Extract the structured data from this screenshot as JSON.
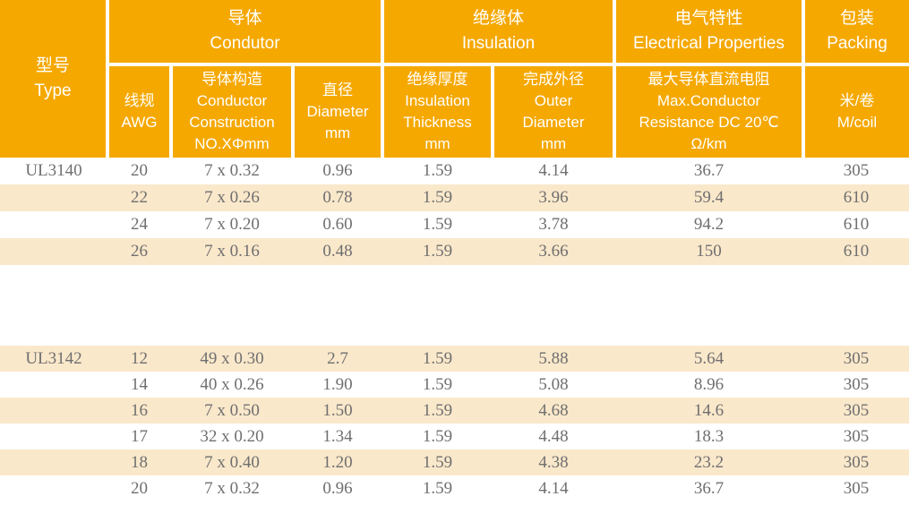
{
  "colors": {
    "header_bg": "#F5A800",
    "stripe_bg": "#FAE8CB",
    "header_text": "#FFFFFF",
    "body_text": "#6F6F6F",
    "divider": "#FFFFFF"
  },
  "table": {
    "header": {
      "type": "型号\nType",
      "groups": [
        {
          "label": "导体\nCondutor",
          "colspan": 3
        },
        {
          "label": "绝缘体\nInsulation",
          "colspan": 2
        },
        {
          "label": "电气特性\nElectrical Properties",
          "colspan": 1
        },
        {
          "label": "包装\nPacking",
          "colspan": 1
        }
      ],
      "columns": [
        "线规\nAWG",
        "导体构造\nConductor\nConstruction\nNO.XΦmm",
        "直径\nDiameter\nmm",
        "绝缘厚度\nInsulation\nThickness\nmm",
        "完成外径\nOuter\nDiameter\nmm",
        "最大导体直流电阻\nMax.Conductor\nResistance DC 20℃\nΩ/km",
        "米/卷\nM/coil"
      ]
    },
    "sections": [
      {
        "type": "UL3140",
        "rows": [
          {
            "awg": "20",
            "construction": "7 x 0.32",
            "diameter": "0.96",
            "insulation_thickness": "1.59",
            "outer_diameter": "4.14",
            "resistance": "36.7",
            "m_per_coil": "305",
            "shaded": false
          },
          {
            "awg": "22",
            "construction": "7 x 0.26",
            "diameter": "0.78",
            "insulation_thickness": "1.59",
            "outer_diameter": "3.96",
            "resistance": "59.4",
            "m_per_coil": "610",
            "shaded": true
          },
          {
            "awg": "24",
            "construction": "7 x 0.20",
            "diameter": "0.60",
            "insulation_thickness": "1.59",
            "outer_diameter": "3.78",
            "resistance": "94.2",
            "m_per_coil": "610",
            "shaded": false
          },
          {
            "awg": "26",
            "construction": "7 x 0.16",
            "diameter": "0.48",
            "insulation_thickness": "1.59",
            "outer_diameter": "3.66",
            "resistance": "150",
            "m_per_coil": "610",
            "shaded": true
          }
        ]
      },
      {
        "type": "UL3142",
        "rows": [
          {
            "awg": "12",
            "construction": "49 x 0.30",
            "diameter": "2.7",
            "insulation_thickness": "1.59",
            "outer_diameter": "5.88",
            "resistance": "5.64",
            "m_per_coil": "305",
            "shaded": true
          },
          {
            "awg": "14",
            "construction": "40 x 0.26",
            "diameter": "1.90",
            "insulation_thickness": "1.59",
            "outer_diameter": "5.08",
            "resistance": "8.96",
            "m_per_coil": "305",
            "shaded": false
          },
          {
            "awg": "16",
            "construction": "7 x 0.50",
            "diameter": "1.50",
            "insulation_thickness": "1.59",
            "outer_diameter": "4.68",
            "resistance": "14.6",
            "m_per_coil": "305",
            "shaded": true
          },
          {
            "awg": "17",
            "construction": "32 x 0.20",
            "diameter": "1.34",
            "insulation_thickness": "1.59",
            "outer_diameter": "4.48",
            "resistance": "18.3",
            "m_per_coil": "305",
            "shaded": false
          },
          {
            "awg": "18",
            "construction": "7 x 0.40",
            "diameter": "1.20",
            "insulation_thickness": "1.59",
            "outer_diameter": "4.38",
            "resistance": "23.2",
            "m_per_coil": "305",
            "shaded": true
          },
          {
            "awg": "20",
            "construction": "7 x 0.32",
            "diameter": "0.96",
            "insulation_thickness": "1.59",
            "outer_diameter": "4.14",
            "resistance": "36.7",
            "m_per_coil": "305",
            "shaded": false
          }
        ]
      }
    ]
  }
}
